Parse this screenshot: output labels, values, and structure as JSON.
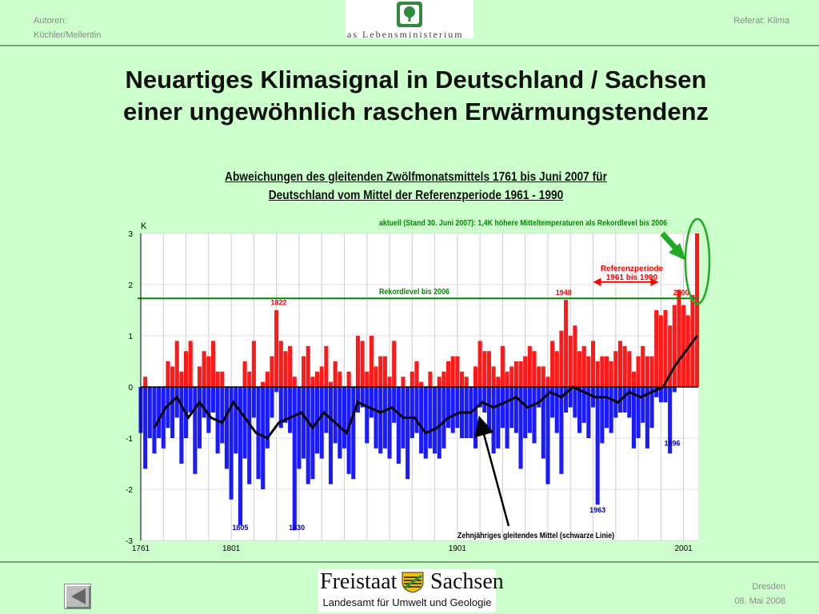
{
  "header": {
    "authors_label": "Autoren:",
    "authors_names": "Küchler/Mellentin",
    "logo_text": "as Lebensministerium",
    "topic": "Referat: Klima"
  },
  "slide": {
    "title_line1": "Neuartiges Klimasignal in Deutschland / Sachsen",
    "title_line2": "einer ungewöhnlich raschen Erwärmungstendenz"
  },
  "footer": {
    "city": "Dresden",
    "date": "08. Mai 2008",
    "org_word1": "Freistaat",
    "org_word2": "Sachsen",
    "org_sub": "Landesamt für Umwelt und Geologie"
  },
  "colors": {
    "positive": "#ff1a1a",
    "negative": "#1a1aff",
    "trend": "#000000",
    "record": "#008800",
    "highlight": "#33aa33",
    "background": "#ccffcc"
  },
  "chart_data": {
    "type": "bar",
    "title_line1": "Abweichungen des gleitenden Zwölfmonatsmittels 1761 bis Juni 2007 für",
    "title_line2": "Deutschland vom Mittel der Referenzperiode 1961 - 1990",
    "ylabel": "K",
    "ylim": [
      -3,
      3
    ],
    "xlim": [
      1761,
      2007.5
    ],
    "yticks": [
      3,
      2,
      1,
      0,
      -1,
      -2,
      -3
    ],
    "xticks": [
      "1761",
      "1801",
      "1901",
      "2001"
    ],
    "xtick_values": [
      1761,
      1801,
      1901,
      2001
    ],
    "grid": true,
    "record_level": {
      "value": 1.73,
      "label": "Rekordlevel bis 2006"
    },
    "annotations": {
      "current": "aktuell (Stand 30. Juni 2007): 1,4K höhere Mitteltemperaturen als Rekordlevel bis 2006",
      "reference_period_line1": "Referenzperiode",
      "reference_period_line2": "1961 bis 1990",
      "trend_label": "Zehnjähriges gleitendes Mittel (schwarze Linie)"
    },
    "reference_period": [
      1961,
      1990
    ],
    "year_labels": [
      {
        "year": "1822",
        "x": 1822,
        "y": 1.6,
        "color": "red"
      },
      {
        "year": "1948",
        "x": 1948,
        "y": 1.8,
        "color": "red"
      },
      {
        "year": "2000",
        "x": 2000,
        "y": 1.8,
        "color": "red"
      },
      {
        "year": "1805",
        "x": 1805,
        "y": -2.8,
        "color": "blue"
      },
      {
        "year": "1830",
        "x": 1830,
        "y": -2.8,
        "color": "blue"
      },
      {
        "year": "1963",
        "x": 1963,
        "y": -2.45,
        "color": "blue"
      },
      {
        "year": "1996",
        "x": 1996,
        "y": -1.15,
        "color": "blue"
      }
    ],
    "anomalies": {
      "x": [
        1761,
        1763,
        1765,
        1767,
        1769,
        1771,
        1773,
        1775,
        1777,
        1779,
        1781,
        1783,
        1785,
        1787,
        1789,
        1791,
        1793,
        1795,
        1797,
        1799,
        1801,
        1803,
        1805,
        1807,
        1809,
        1811,
        1813,
        1815,
        1817,
        1819,
        1821,
        1823,
        1825,
        1827,
        1829,
        1831,
        1833,
        1835,
        1837,
        1839,
        1841,
        1843,
        1845,
        1847,
        1849,
        1851,
        1853,
        1855,
        1857,
        1859,
        1861,
        1863,
        1865,
        1867,
        1869,
        1871,
        1873,
        1875,
        1877,
        1879,
        1881,
        1883,
        1885,
        1887,
        1889,
        1891,
        1893,
        1895,
        1897,
        1899,
        1901,
        1903,
        1905,
        1907,
        1909,
        1911,
        1913,
        1915,
        1917,
        1919,
        1921,
        1923,
        1925,
        1927,
        1929,
        1931,
        1933,
        1935,
        1937,
        1939,
        1941,
        1943,
        1945,
        1947,
        1949,
        1951,
        1953,
        1955,
        1957,
        1959,
        1961,
        1963,
        1965,
        1967,
        1969,
        1971,
        1973,
        1975,
        1977,
        1979,
        1981,
        1983,
        1985,
        1987,
        1989,
        1991,
        1993,
        1995,
        1997,
        1999,
        2001,
        2003,
        2005,
        2007
      ],
      "max": [
        0.0,
        0.2,
        0.0,
        0.0,
        0.0,
        0.0,
        0.5,
        0.4,
        0.9,
        0.3,
        0.7,
        0.9,
        0.0,
        0.4,
        0.7,
        0.6,
        0.9,
        0.3,
        0.3,
        0.0,
        0.0,
        0.0,
        0.0,
        0.5,
        0.3,
        0.9,
        0.0,
        0.1,
        0.3,
        0.6,
        1.5,
        0.9,
        0.7,
        0.8,
        0.2,
        0.0,
        0.6,
        0.8,
        0.2,
        0.3,
        0.4,
        0.8,
        0.1,
        0.5,
        0.3,
        0.0,
        0.3,
        0.0,
        1.0,
        0.9,
        0.3,
        1.0,
        0.4,
        0.6,
        0.6,
        0.2,
        0.9,
        0.0,
        0.2,
        0.0,
        0.3,
        0.5,
        0.1,
        0.0,
        0.3,
        0.0,
        0.2,
        0.3,
        0.5,
        0.6,
        0.6,
        0.3,
        0.2,
        0.0,
        0.4,
        0.9,
        0.7,
        0.7,
        0.4,
        0.2,
        0.8,
        0.3,
        0.4,
        0.5,
        0.5,
        0.6,
        0.8,
        0.7,
        0.4,
        0.4,
        0.2,
        0.9,
        0.7,
        1.1,
        1.7,
        1.0,
        1.2,
        0.7,
        0.8,
        0.6,
        0.9,
        0.5,
        0.6,
        0.6,
        0.5,
        0.7,
        0.9,
        0.8,
        0.7,
        0.3,
        0.6,
        0.8,
        0.6,
        0.6,
        1.5,
        1.4,
        1.5,
        1.2,
        1.6,
        1.9,
        1.6,
        1.4,
        1.8,
        3.0
      ],
      "min": [
        -0.9,
        -1.6,
        -1.0,
        -1.3,
        -1.0,
        -1.2,
        -0.8,
        -1.0,
        -0.6,
        -1.5,
        -1.0,
        -0.5,
        -1.7,
        -1.2,
        -0.6,
        -0.9,
        -0.5,
        -1.3,
        -1.1,
        -1.6,
        -2.2,
        -1.3,
        -2.7,
        -1.4,
        -1.9,
        -0.6,
        -1.8,
        -2.0,
        -1.2,
        -0.6,
        -0.1,
        -0.8,
        -0.7,
        -0.9,
        -2.8,
        -1.6,
        -1.4,
        -1.9,
        -1.8,
        -1.3,
        -1.4,
        -0.9,
        -1.9,
        -1.1,
        -1.4,
        -1.2,
        -1.7,
        -1.8,
        -0.5,
        -0.4,
        -1.1,
        -0.6,
        -1.2,
        -1.3,
        -1.2,
        -1.4,
        -0.7,
        -1.5,
        -1.2,
        -1.8,
        -1.0,
        -0.9,
        -1.3,
        -1.4,
        -1.2,
        -1.3,
        -1.4,
        -1.2,
        -0.8,
        -0.9,
        -0.8,
        -1.0,
        -1.0,
        -1.0,
        -1.2,
        -0.4,
        -0.5,
        -0.9,
        -1.3,
        -1.2,
        -0.8,
        -1.2,
        -0.8,
        -0.9,
        -1.6,
        -1.0,
        -0.9,
        -1.1,
        -0.4,
        -1.4,
        -1.9,
        -0.6,
        -0.9,
        -1.7,
        -0.5,
        -0.4,
        -0.6,
        -0.9,
        -0.7,
        -1.0,
        -0.4,
        -2.3,
        -1.1,
        -0.8,
        -0.9,
        -0.6,
        -0.5,
        -0.5,
        -0.6,
        -1.2,
        -1.0,
        -0.7,
        -1.2,
        -0.8,
        -0.2,
        -0.3,
        -0.3,
        -1.3,
        -0.1,
        0.0,
        0.0,
        0.0,
        0.0,
        0.0
      ]
    },
    "trend": {
      "x": [
        1767,
        1772,
        1777,
        1782,
        1787,
        1792,
        1797,
        1802,
        1807,
        1812,
        1817,
        1822,
        1827,
        1832,
        1837,
        1842,
        1847,
        1852,
        1857,
        1862,
        1867,
        1872,
        1877,
        1882,
        1887,
        1892,
        1897,
        1902,
        1907,
        1912,
        1917,
        1922,
        1927,
        1932,
        1937,
        1942,
        1947,
        1952,
        1957,
        1962,
        1967,
        1972,
        1977,
        1982,
        1987,
        1992,
        1997,
        2002,
        2007
      ],
      "y": [
        -0.8,
        -0.4,
        -0.2,
        -0.6,
        -0.3,
        -0.6,
        -0.7,
        -0.3,
        -0.6,
        -0.9,
        -1.0,
        -0.7,
        -0.6,
        -0.5,
        -0.8,
        -0.5,
        -0.7,
        -0.9,
        -0.3,
        -0.4,
        -0.5,
        -0.4,
        -0.6,
        -0.6,
        -0.9,
        -0.8,
        -0.6,
        -0.5,
        -0.5,
        -0.3,
        -0.4,
        -0.3,
        -0.2,
        -0.4,
        -0.3,
        -0.1,
        -0.2,
        0.0,
        -0.1,
        -0.2,
        -0.2,
        -0.3,
        -0.1,
        -0.2,
        -0.1,
        0.0,
        0.4,
        0.7,
        1.0
      ]
    }
  }
}
